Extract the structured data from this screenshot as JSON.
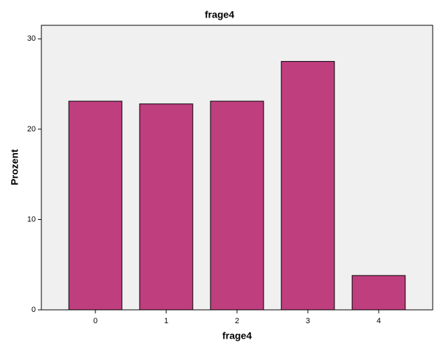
{
  "chart_data": {
    "type": "bar",
    "title": "frage4",
    "x_label": "frage4",
    "y_label": "Prozent",
    "categories": [
      "0",
      "1",
      "2",
      "3",
      "4"
    ],
    "values": [
      23.1,
      22.8,
      23.1,
      27.5,
      3.8
    ],
    "color": "#be3e7e",
    "ylim": [
      0,
      31.5
    ],
    "yticks": [
      0,
      10,
      20,
      30
    ],
    "grid": false
  }
}
